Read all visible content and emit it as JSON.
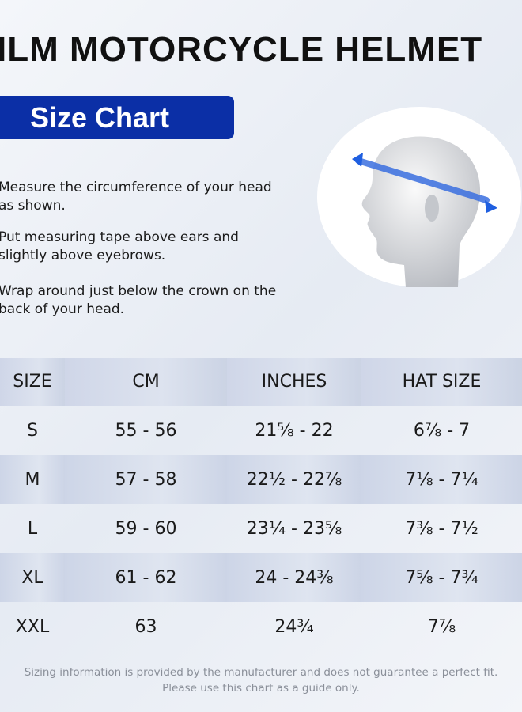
{
  "title": "ILM MOTORCYCLE HELMET",
  "badge": "Size Chart",
  "instructions": [
    "Measure the circumference of your head as shown.",
    "Put measuring tape above ears and slightly above eyebrows.",
    "Wrap around just below the crown on the back of your head."
  ],
  "colors": {
    "accent": "#0b2fa6",
    "tape": "#3a6fe0"
  },
  "table": {
    "headers": [
      "SIZE",
      "CM",
      "INCHES",
      "HAT SIZE"
    ],
    "rows": [
      [
        "S",
        "55 - 56",
        "21⅝ - 22",
        "6⅞ - 7"
      ],
      [
        "M",
        "57 - 58",
        "22½ - 22⅞",
        "7⅛ - 7¼"
      ],
      [
        "L",
        "59 - 60",
        "23¼ - 23⅝",
        "7⅜ - 7½"
      ],
      [
        "XL",
        "61 - 62",
        "24 - 24⅜",
        "7⅝ - 7¾"
      ],
      [
        "XXL",
        "63",
        "24¾",
        "7⅞"
      ]
    ]
  },
  "footer": [
    "Sizing information is provided by the manufacturer and does not guarantee a perfect fit.",
    "Please use this chart as a guide only."
  ]
}
